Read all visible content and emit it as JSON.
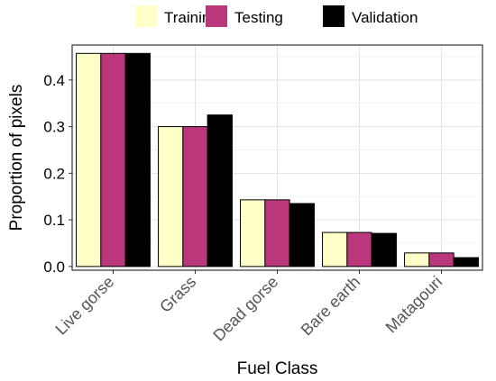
{
  "chart_data": {
    "type": "bar",
    "xlabel": "Fuel Class",
    "ylabel": "Proportion of pixels",
    "ylim": [
      -0.008,
      0.475
    ],
    "yticks": [
      0.0,
      0.1,
      0.2,
      0.3,
      0.4
    ],
    "ytick_labels": [
      "0.0",
      "0.1",
      "0.2",
      "0.3",
      "0.4"
    ],
    "categories": [
      "Live gorse",
      "Grass",
      "Dead gorse",
      "Bare earth",
      "Matagouri"
    ],
    "grid": true,
    "legend_position": "top",
    "series": [
      {
        "name": "Training",
        "color": "#FFFFC8",
        "values": [
          0.457,
          0.3,
          0.143,
          0.073,
          0.029
        ]
      },
      {
        "name": "Testing",
        "color": "#B9377A",
        "values": [
          0.457,
          0.3,
          0.143,
          0.073,
          0.029
        ]
      },
      {
        "name": "Validation",
        "color": "#000000",
        "values": [
          0.457,
          0.325,
          0.135,
          0.071,
          0.019
        ]
      }
    ]
  }
}
